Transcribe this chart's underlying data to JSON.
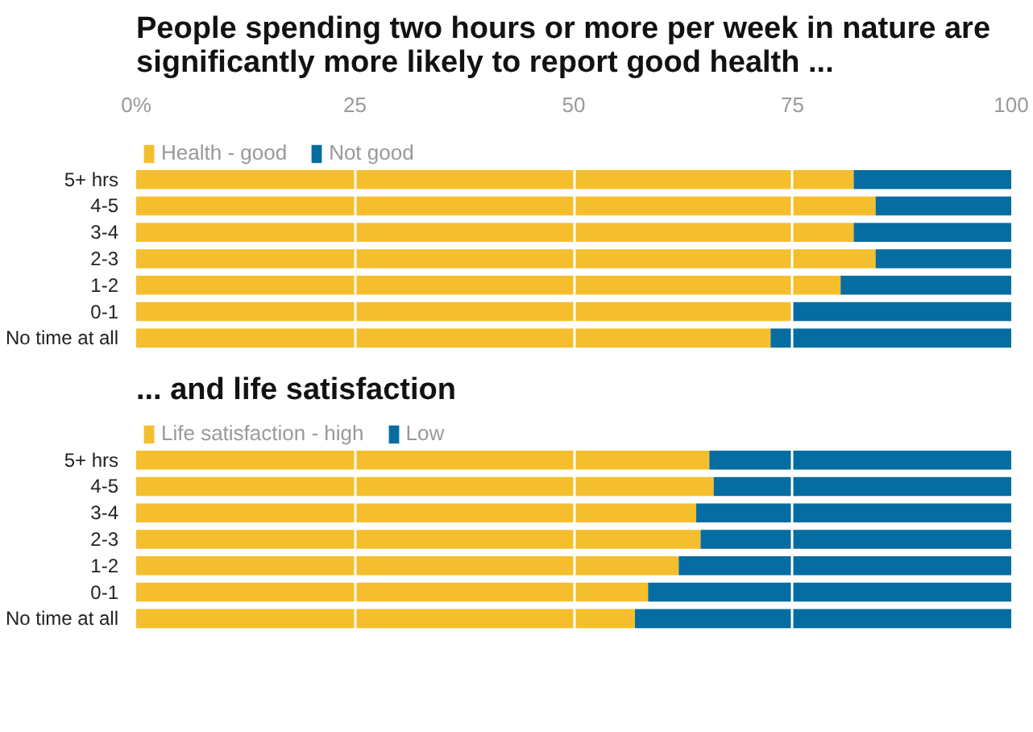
{
  "chart_data": [
    {
      "type": "bar",
      "orientation": "horizontal",
      "stacked": true,
      "title": "People spending two hours or more per week in nature are significantly more likely to report good health ...",
      "categories": [
        "5+ hrs",
        "4-5",
        "3-4",
        "2-3",
        "1-2",
        "0-1",
        "No time at all"
      ],
      "series": [
        {
          "name": "Health - good",
          "color": "#f5be2c",
          "values": [
            82,
            84.5,
            82,
            84.5,
            80.5,
            75,
            72.5
          ]
        },
        {
          "name": "Not good",
          "color": "#056da1",
          "values": [
            18,
            15.5,
            18,
            15.5,
            19.5,
            25,
            27.5
          ]
        }
      ],
      "xlim": [
        0,
        100
      ],
      "xticks": [
        {
          "value": 0,
          "label": "0%"
        },
        25,
        50,
        75,
        100
      ],
      "grid": "x",
      "legend": "top left"
    },
    {
      "type": "bar",
      "orientation": "horizontal",
      "stacked": true,
      "title": "... and life satisfaction",
      "categories": [
        "5+ hrs",
        "4-5",
        "3-4",
        "2-3",
        "1-2",
        "0-1",
        "No time at all"
      ],
      "series": [
        {
          "name": "Life satisfaction - high",
          "color": "#f5be2c",
          "values": [
            65.5,
            66,
            64,
            64.5,
            62,
            58.5,
            57
          ]
        },
        {
          "name": "Low",
          "color": "#056da1",
          "values": [
            34.5,
            34,
            36,
            35.5,
            38,
            41.5,
            43
          ]
        }
      ],
      "xlim": [
        0,
        100
      ],
      "xticks": [
        0,
        25,
        50,
        75,
        100
      ],
      "grid": "x",
      "legend": "top left",
      "tick_labels": "y"
    }
  ]
}
